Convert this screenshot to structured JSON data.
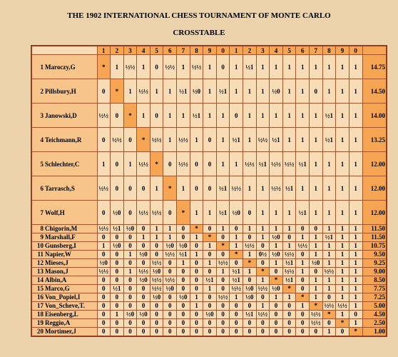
{
  "title": "THE 1902 INTERNATIONAL CHESS TOURNAMENT OF MONTE CARLO",
  "subtitle": "CROSSTABLE",
  "table": {
    "header": [
      "1",
      "2",
      "3",
      "4",
      "5",
      "6",
      "7",
      "8",
      "9",
      "0",
      "1",
      "2",
      "3",
      "4",
      "5",
      "6",
      "7",
      "8",
      "9",
      "0"
    ],
    "rows": [
      {
        "rank": 1,
        "name": "Maroczy,G",
        "cells": [
          "*",
          "1",
          "½½",
          "1",
          "0",
          "½½",
          "1",
          "½½",
          "1",
          "0",
          "1",
          "½1",
          "1",
          "1",
          "1",
          "1",
          "1",
          "1",
          "1",
          "1"
        ],
        "score": "14.75"
      },
      {
        "rank": 2,
        "name": "Pillsbury,H",
        "cells": [
          "0",
          "*",
          "1",
          "½½",
          "1",
          "1",
          "½1",
          "½0",
          "1",
          "½1",
          "1",
          "1",
          "1",
          "½0",
          "1",
          "1",
          "0",
          "1",
          "1",
          "1"
        ],
        "score": "14.50"
      },
      {
        "rank": 3,
        "name": "Janowski,D",
        "cells": [
          "½½",
          "0",
          "*",
          "1",
          "0",
          "1",
          "1",
          "½1",
          "1",
          "1",
          "0",
          "1",
          "1",
          "1",
          "1",
          "1",
          "1",
          "½1",
          "1",
          "1"
        ],
        "score": "14.00"
      },
      {
        "rank": 4,
        "name": "Teichmann,R",
        "cells": [
          "0",
          "½½",
          "0",
          "*",
          "½½",
          "1",
          "½½",
          "1",
          "0",
          "1",
          "½1",
          "1",
          "½½",
          "½1",
          "1",
          "1",
          "1",
          "½1",
          "1",
          "1"
        ],
        "score": "13.25"
      },
      {
        "rank": 5,
        "name": "Schlechter,C",
        "cells": [
          "1",
          "0",
          "1",
          "½½",
          "*",
          "0",
          "½½",
          "0",
          "0",
          "1",
          "1",
          "½½",
          "½1",
          "½½",
          "½½",
          "½1",
          "1",
          "1",
          "1",
          "1"
        ],
        "score": "12.00"
      },
      {
        "rank": 6,
        "name": "Tarrasch,S",
        "cells": [
          "½½",
          "0",
          "0",
          "0",
          "1",
          "*",
          "1",
          "0",
          "0",
          "½1",
          "½½",
          "1",
          "1",
          "½½",
          "½1",
          "1",
          "1",
          "1",
          "1",
          "1"
        ],
        "score": "12.00"
      },
      {
        "rank": 7,
        "name": "Wolf,H",
        "cells": [
          "0",
          "½0",
          "0",
          "½½",
          "½½",
          "0",
          "*",
          "1",
          "1",
          "½1",
          "½0",
          "0",
          "1",
          "1",
          "1",
          "½1",
          "1",
          "1",
          "1",
          "1"
        ],
        "score": "12.00"
      },
      {
        "rank": 8,
        "name": "Chigorin,M",
        "cells": [
          "½½",
          "½1",
          "½0",
          "0",
          "1",
          "1",
          "0",
          "*",
          "0",
          "1",
          "0",
          "1",
          "1",
          "1",
          "1",
          "0",
          "0",
          "1",
          "1",
          "1"
        ],
        "score": "11.50"
      },
      {
        "rank": 9,
        "name": "Marshall,F",
        "cells": [
          "0",
          "0",
          "0",
          "1",
          "1",
          "1",
          "0",
          "1",
          "*",
          "0",
          "1",
          "0",
          "1",
          "½0",
          "0",
          "1",
          "1",
          "½1",
          "1",
          "1"
        ],
        "score": "11.50"
      },
      {
        "rank": 10,
        "name": "Gunsberg,I",
        "cells": [
          "1",
          "½0",
          "0",
          "0",
          "0",
          "½0",
          "½0",
          "0",
          "1",
          "*",
          "1",
          "½½",
          "0",
          "1",
          "1",
          "½½",
          "1",
          "1",
          "1",
          "1"
        ],
        "score": "10.75"
      },
      {
        "rank": 11,
        "name": "Napier,W",
        "cells": [
          "0",
          "0",
          "1",
          "½0",
          "0",
          "½½",
          "½1",
          "1",
          "0",
          "0",
          "*",
          "1",
          "0½",
          "½0",
          "½½",
          "0",
          "1",
          "1",
          "1",
          "1"
        ],
        "score": "9.50"
      },
      {
        "rank": 12,
        "name": "Mieses,J",
        "cells": [
          "½0",
          "0",
          "0",
          "0",
          "½½",
          "0",
          "1",
          "0",
          "1",
          "½½",
          "0",
          "*",
          "0",
          "1",
          "½1",
          "1",
          "½0",
          "1",
          "1",
          "1"
        ],
        "score": "9.25"
      },
      {
        "rank": 13,
        "name": "Mason,J",
        "cells": [
          "½½",
          "0",
          "1",
          "½½",
          "½0",
          "0",
          "0",
          "0",
          "0",
          "1",
          "½1",
          "1",
          "*",
          "0",
          "½½",
          "1",
          "0",
          "½½",
          "1",
          "1"
        ],
        "score": "9.00"
      },
      {
        "rank": 14,
        "name": "Albin,A",
        "cells": [
          "0",
          "0",
          "0",
          "½0",
          "½½",
          "½½",
          "0",
          "0",
          "½1",
          "0",
          "½1",
          "0",
          "1",
          "*",
          "½1",
          "0",
          "1",
          "1",
          "1",
          "1"
        ],
        "score": "8.50"
      },
      {
        "rank": 15,
        "name": "Marco,G",
        "cells": [
          "0",
          "½1",
          "0",
          "0",
          "½½",
          "½0",
          "0",
          "0",
          "1",
          "0",
          "½½",
          "½0",
          "½½",
          "½0",
          "*",
          "0",
          "1",
          "1",
          "1",
          "1"
        ],
        "score": "7.75"
      },
      {
        "rank": 16,
        "name": "Von_Popiel,I",
        "cells": [
          "0",
          "0",
          "0",
          "0",
          "½0",
          "0",
          "½0",
          "1",
          "0",
          "½½",
          "1",
          "½0",
          "0",
          "1",
          "1",
          "*",
          "1",
          "0",
          "1",
          "1"
        ],
        "score": "7.25"
      },
      {
        "rank": 17,
        "name": "Von_Scheve,T.",
        "cells": [
          "0",
          "0",
          "0",
          "0",
          "0",
          "0",
          "0",
          "1",
          "0",
          "0",
          "0",
          "0",
          "1",
          "0",
          "0",
          "1",
          "*",
          "½½",
          "½½",
          "1"
        ],
        "score": "5.00"
      },
      {
        "rank": 18,
        "name": "Eisenberg,L",
        "cells": [
          "0",
          "1",
          "½0",
          "½0",
          "0",
          "0",
          "0",
          "0",
          "½0",
          "0",
          "0",
          "½1",
          "½½",
          "0",
          "0",
          "0",
          "½½",
          "*",
          "1",
          "0"
        ],
        "score": "4.50"
      },
      {
        "rank": 19,
        "name": "Reggio,A",
        "cells": [
          "0",
          "0",
          "0",
          "0",
          "0",
          "0",
          "0",
          "0",
          "0",
          "0",
          "0",
          "0",
          "0",
          "0",
          "0",
          "0",
          "½½",
          "0",
          "*",
          "1"
        ],
        "score": "2.50"
      },
      {
        "rank": 20,
        "name": "Mortimer,J",
        "cells": [
          "0",
          "0",
          "0",
          "0",
          "0",
          "0",
          "0",
          "0",
          "0",
          "0",
          "0",
          "0",
          "0",
          "0",
          "0",
          "0",
          "0",
          "1",
          "0",
          "*"
        ],
        "score": "1.00"
      }
    ]
  }
}
